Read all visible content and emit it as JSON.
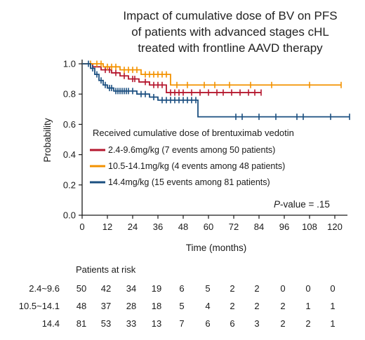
{
  "chart_data": {
    "type": "line",
    "title": [
      "Impact of cumulative dose of BV on PFS",
      "of patients with advanced stages cHL",
      "treated with frontline AAVD therapy"
    ],
    "xlabel": "Time (months)",
    "ylabel": "Probability",
    "xlim": [
      0,
      126
    ],
    "ylim": [
      0,
      1.0
    ],
    "x_ticks": [
      0,
      12,
      24,
      36,
      48,
      60,
      72,
      84,
      96,
      108,
      120
    ],
    "y_ticks": [
      0.0,
      0.2,
      0.4,
      0.6,
      0.8,
      1.0
    ],
    "y_tick_labels": [
      "0.0",
      "0.2",
      "0.4",
      "0.6",
      "0.8",
      "1.0"
    ],
    "legend_title": "Received cumulative dose of brentuximab vedotin",
    "legend_position": "center",
    "annotation": {
      "italic": "P",
      "text": "-value = .15"
    },
    "series": [
      {
        "name": "2.4-9.6mg/kg (7 events among 50 patients)",
        "color": "#b5172e",
        "steps": [
          [
            0,
            1.0
          ],
          [
            5,
            0.98
          ],
          [
            9,
            0.96
          ],
          [
            14,
            0.94
          ],
          [
            18,
            0.92
          ],
          [
            22,
            0.9
          ],
          [
            27,
            0.88
          ],
          [
            32,
            0.86
          ],
          [
            40,
            0.81
          ],
          [
            85,
            0.81
          ]
        ],
        "censor": [
          11,
          13,
          16,
          20,
          24,
          25,
          30,
          34,
          36,
          38,
          42,
          44,
          46,
          48,
          52,
          56,
          60,
          64,
          67,
          71,
          75,
          79,
          82,
          85
        ]
      },
      {
        "name": "10.5-14.1mg/kg (4 events among 48 patients)",
        "color": "#f39200",
        "steps": [
          [
            0,
            1.0
          ],
          [
            10,
            0.98
          ],
          [
            18,
            0.96
          ],
          [
            28,
            0.93
          ],
          [
            42,
            0.86
          ],
          [
            123,
            0.86
          ]
        ],
        "censor": [
          4,
          7,
          9,
          12,
          14,
          16,
          20,
          22,
          24,
          26,
          30,
          32,
          34,
          36,
          38,
          40,
          45,
          50,
          58,
          63,
          70,
          80,
          90,
          108,
          123
        ]
      },
      {
        "name": "14.4mg/kg (15 events among 81 patients)",
        "color": "#1b4f80",
        "steps": [
          [
            0,
            1.0
          ],
          [
            4,
            0.97
          ],
          [
            6,
            0.93
          ],
          [
            8,
            0.89
          ],
          [
            10,
            0.86
          ],
          [
            12,
            0.84
          ],
          [
            15,
            0.82
          ],
          [
            26,
            0.8
          ],
          [
            32,
            0.78
          ],
          [
            36,
            0.76
          ],
          [
            55,
            0.65
          ],
          [
            127,
            0.65
          ]
        ],
        "censor": [
          3,
          5,
          7,
          9,
          11,
          13,
          14,
          16,
          17,
          18,
          19,
          20,
          21,
          22,
          24,
          28,
          30,
          34,
          38,
          40,
          42,
          44,
          46,
          48,
          50,
          52,
          54,
          73,
          76,
          84,
          92,
          102,
          105,
          118,
          127
        ]
      }
    ],
    "risk_table": {
      "header": "Patients at risk",
      "time_points": [
        0,
        12,
        24,
        36,
        48,
        60,
        72,
        84,
        96,
        108,
        120
      ],
      "rows": [
        {
          "label": "2.4~9.6",
          "counts": [
            50,
            42,
            34,
            19,
            6,
            5,
            2,
            2,
            0,
            0,
            0
          ]
        },
        {
          "label": "10.5~14.1",
          "counts": [
            48,
            37,
            28,
            18,
            5,
            4,
            2,
            2,
            2,
            1,
            1
          ]
        },
        {
          "label": "14.4",
          "counts": [
            81,
            53,
            33,
            13,
            7,
            6,
            6,
            3,
            2,
            2,
            1
          ]
        }
      ]
    }
  }
}
